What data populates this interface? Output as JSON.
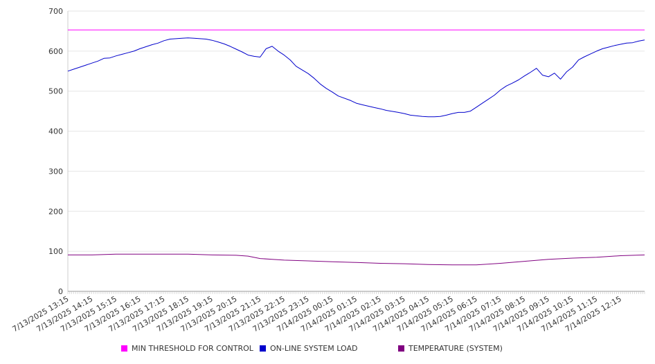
{
  "chart_data": {
    "type": "line",
    "title": "",
    "xlabel": "",
    "ylabel": "",
    "ylim": [
      0,
      700
    ],
    "yticks": [
      0,
      100,
      200,
      300,
      400,
      500,
      600,
      700
    ],
    "grid": true,
    "legend_position": "bottom",
    "x_tick_labels": [
      "7/13/2025 13:15",
      "7/13/2025 14:15",
      "7/13/2025 15:15",
      "7/13/2025 16:15",
      "7/13/2025 17:15",
      "7/13/2025 18:15",
      "7/13/2025 19:15",
      "7/13/2025 20:15",
      "7/13/2025 21:15",
      "7/13/2025 22:15",
      "7/13/2025 23:15",
      "7/14/2025 00:15",
      "7/14/2025 01:15",
      "7/14/2025 02:15",
      "7/14/2025 03:15",
      "7/14/2025 04:15",
      "7/14/2025 05:15",
      "7/14/2025 06:15",
      "7/14/2025 07:15",
      "7/14/2025 08:15",
      "7/14/2025 09:15",
      "7/14/2025 10:15",
      "7/14/2025 11:15",
      "7/14/2025 12:15"
    ],
    "x_start": "7/13/2025 13:15",
    "x_end": "7/14/2025 13:15",
    "series": [
      {
        "name": "MIN THRESHOLD FOR CONTROL",
        "color": "#ff00ff",
        "x": [
          "7/13/2025 13:15",
          "7/14/2025 13:15"
        ],
        "values": [
          653,
          653
        ]
      },
      {
        "name": "ON-LINE SYSTEM LOAD",
        "color": "#0000cc",
        "x": [
          "7/13/2025 13:15",
          "7/13/2025 13:30",
          "7/13/2025 13:45",
          "7/13/2025 14:00",
          "7/13/2025 14:15",
          "7/13/2025 14:30",
          "7/13/2025 14:45",
          "7/13/2025 15:00",
          "7/13/2025 15:15",
          "7/13/2025 15:30",
          "7/13/2025 15:45",
          "7/13/2025 16:00",
          "7/13/2025 16:15",
          "7/13/2025 16:30",
          "7/13/2025 16:45",
          "7/13/2025 17:00",
          "7/13/2025 17:15",
          "7/13/2025 17:30",
          "7/13/2025 17:45",
          "7/13/2025 18:00",
          "7/13/2025 18:15",
          "7/13/2025 18:30",
          "7/13/2025 18:45",
          "7/13/2025 19:00",
          "7/13/2025 19:15",
          "7/13/2025 19:30",
          "7/13/2025 19:45",
          "7/13/2025 20:00",
          "7/13/2025 20:15",
          "7/13/2025 20:30",
          "7/13/2025 20:45",
          "7/13/2025 21:00",
          "7/13/2025 21:15",
          "7/13/2025 21:30",
          "7/13/2025 21:45",
          "7/13/2025 22:00",
          "7/13/2025 22:15",
          "7/13/2025 22:30",
          "7/13/2025 22:45",
          "7/13/2025 23:00",
          "7/13/2025 23:15",
          "7/13/2025 23:30",
          "7/13/2025 23:45",
          "7/14/2025 00:00",
          "7/14/2025 00:15",
          "7/14/2025 00:30",
          "7/14/2025 01:00",
          "7/14/2025 01:15",
          "7/14/2025 01:30",
          "7/14/2025 02:00",
          "7/14/2025 02:15",
          "7/14/2025 02:30",
          "7/14/2025 03:00",
          "7/14/2025 03:15",
          "7/14/2025 03:30",
          "7/14/2025 04:00",
          "7/14/2025 04:15",
          "7/14/2025 04:30",
          "7/14/2025 04:45",
          "7/14/2025 05:00",
          "7/14/2025 05:15",
          "7/14/2025 05:30",
          "7/14/2025 05:45",
          "7/14/2025 06:00",
          "7/14/2025 06:15",
          "7/14/2025 06:30",
          "7/14/2025 06:45",
          "7/14/2025 07:00",
          "7/14/2025 07:15",
          "7/14/2025 07:30",
          "7/14/2025 07:45",
          "7/14/2025 08:00",
          "7/14/2025 08:15",
          "7/14/2025 08:30",
          "7/14/2025 08:45",
          "7/14/2025 09:00",
          "7/14/2025 09:15",
          "7/14/2025 09:30",
          "7/14/2025 09:45",
          "7/14/2025 10:00",
          "7/14/2025 10:15",
          "7/14/2025 10:30",
          "7/14/2025 10:45",
          "7/14/2025 11:00",
          "7/14/2025 11:15",
          "7/14/2025 11:30",
          "7/14/2025 11:45",
          "7/14/2025 12:00",
          "7/14/2025 12:15",
          "7/14/2025 12:30",
          "7/14/2025 12:45",
          "7/14/2025 13:00",
          "7/14/2025 13:15"
        ],
        "values": [
          550,
          555,
          560,
          565,
          570,
          575,
          582,
          583,
          588,
          592,
          596,
          600,
          606,
          611,
          616,
          620,
          626,
          630,
          631,
          632,
          633,
          632,
          631,
          630,
          627,
          623,
          618,
          612,
          605,
          598,
          590,
          587,
          585,
          606,
          612,
          600,
          590,
          578,
          562,
          553,
          544,
          532,
          518,
          507,
          498,
          488,
          477,
          470,
          466,
          459,
          456,
          452,
          447,
          444,
          440,
          437,
          436,
          436,
          437,
          440,
          444,
          447,
          447,
          450,
          460,
          470,
          480,
          490,
          503,
          513,
          520,
          528,
          538,
          547,
          557,
          540,
          536,
          545,
          530,
          548,
          560,
          578,
          586,
          593,
          600,
          606,
          610,
          614,
          617,
          620,
          621,
          625,
          628
        ]
      },
      {
        "name": "TEMPERATURE (SYSTEM)",
        "color": "#800080",
        "x": [
          "7/13/2025 13:15",
          "7/13/2025 14:15",
          "7/13/2025 15:15",
          "7/13/2025 16:15",
          "7/13/2025 17:15",
          "7/13/2025 18:15",
          "7/13/2025 19:15",
          "7/13/2025 20:15",
          "7/13/2025 20:45",
          "7/13/2025 21:15",
          "7/13/2025 21:45",
          "7/13/2025 22:15",
          "7/13/2025 23:15",
          "7/14/2025 00:15",
          "7/14/2025 01:15",
          "7/14/2025 02:15",
          "7/14/2025 03:15",
          "7/14/2025 04:15",
          "7/14/2025 05:15",
          "7/14/2025 06:15",
          "7/14/2025 07:15",
          "7/14/2025 08:15",
          "7/14/2025 09:15",
          "7/14/2025 10:15",
          "7/14/2025 11:15",
          "7/14/2025 12:15",
          "7/14/2025 13:15"
        ],
        "values": [
          91,
          91,
          93,
          93,
          93,
          93,
          91,
          90,
          88,
          82,
          80,
          78,
          76,
          74,
          72,
          70,
          69,
          67,
          66,
          66,
          70,
          75,
          80,
          83,
          85,
          89,
          91
        ]
      }
    ]
  }
}
